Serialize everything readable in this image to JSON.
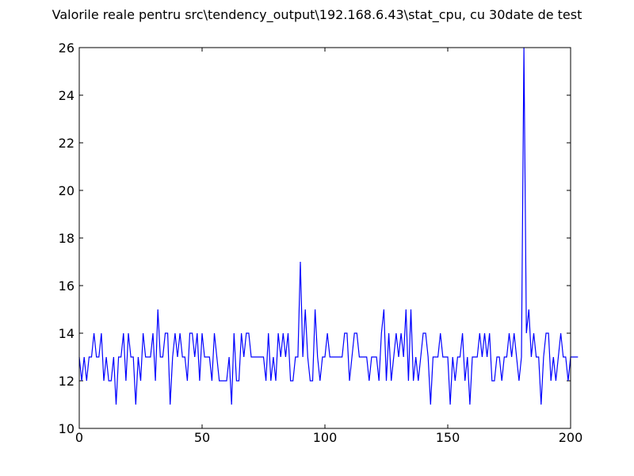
{
  "chart_data": {
    "type": "line",
    "title": "Valorile reale pentru src\\tendency_output\\192.168.6.43\\stat_cpu, cu 30date de test",
    "xlabel": "",
    "ylabel": "",
    "xlim": [
      0,
      200
    ],
    "ylim": [
      10,
      26
    ],
    "grid": false,
    "legend": "none",
    "x_ticks": [
      0,
      50,
      100,
      150,
      200
    ],
    "y_ticks": [
      10,
      12,
      14,
      16,
      18,
      20,
      22,
      24,
      26
    ],
    "line_color": "#0000ff",
    "series": [
      {
        "values": [
          13,
          12,
          13,
          12,
          13,
          13,
          14,
          13,
          13,
          14,
          12,
          13,
          12,
          12,
          13,
          11,
          13,
          13,
          14,
          12,
          14,
          13,
          13,
          11,
          13,
          12,
          14,
          13,
          13,
          13,
          14,
          12,
          15,
          13,
          13,
          14,
          14,
          11,
          13,
          14,
          13,
          14,
          13,
          13,
          12,
          14,
          14,
          13,
          14,
          12,
          14,
          13,
          13,
          13,
          12,
          14,
          13,
          12,
          12,
          12,
          12,
          13,
          11,
          14,
          12,
          12,
          14,
          13,
          14,
          14,
          13,
          13,
          13,
          13,
          13,
          13,
          12,
          14,
          12,
          13,
          12,
          14,
          13,
          14,
          13,
          14,
          12,
          12,
          13,
          13,
          17,
          13,
          15,
          13,
          12,
          12,
          15,
          13,
          12,
          13,
          13,
          14,
          13,
          13,
          13,
          13,
          13,
          13,
          14,
          14,
          12,
          13,
          14,
          14,
          13,
          13,
          13,
          13,
          12,
          13,
          13,
          13,
          12,
          14,
          15,
          12,
          14,
          12,
          13,
          14,
          13,
          14,
          13,
          15,
          12,
          15,
          12,
          13,
          12,
          13,
          14,
          14,
          13,
          11,
          13,
          13,
          13,
          14,
          13,
          13,
          13,
          11,
          13,
          12,
          13,
          13,
          14,
          12,
          13,
          11,
          13,
          13,
          13,
          14,
          13,
          14,
          13,
          14,
          12,
          12,
          13,
          13,
          12,
          13,
          13,
          14,
          13,
          14,
          13,
          12,
          13,
          26,
          14,
          15,
          13,
          14,
          13,
          13,
          11,
          13,
          14,
          14,
          12,
          13,
          12,
          13,
          14,
          13,
          13,
          12,
          13,
          13,
          13,
          13
        ]
      }
    ]
  }
}
